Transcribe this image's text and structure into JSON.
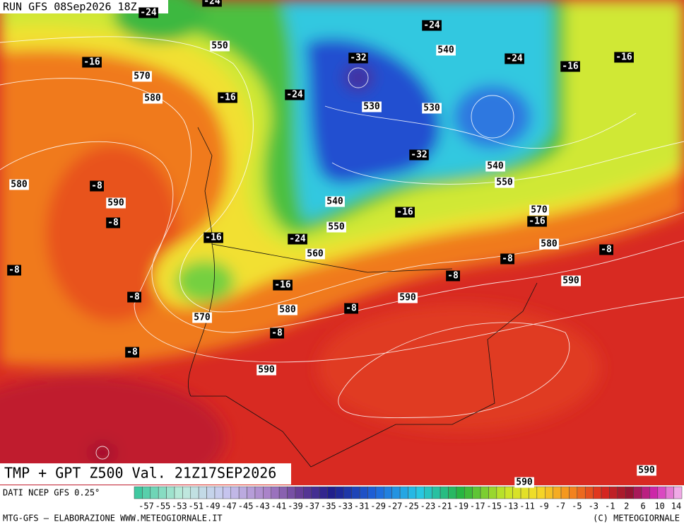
{
  "header": {
    "run": "RUN GFS 08Sep2026 18Z",
    "product": "TMP + GPT Z500 Val. 21Z17SEP2026"
  },
  "map_labels": {
    "temperature": [
      -24,
      -24,
      -16,
      -16,
      -24,
      -32,
      -24,
      -24,
      -16,
      -16,
      -32,
      -8,
      -8,
      -16,
      -24,
      -16,
      -16,
      -8,
      -8,
      -16,
      -8,
      -8,
      -8,
      -8,
      -8,
      -8
    ],
    "height": [
      550,
      570,
      580,
      540,
      530,
      530,
      540,
      550,
      580,
      590,
      540,
      550,
      560,
      570,
      580,
      590,
      590,
      580,
      570,
      590,
      590,
      590
    ]
  },
  "scale": {
    "ticks": [
      -57,
      -55,
      -53,
      -51,
      -49,
      -47,
      -45,
      -43,
      -41,
      -39,
      -37,
      -35,
      -33,
      -31,
      -29,
      -27,
      -25,
      -23,
      -21,
      -19,
      -17,
      -15,
      -13,
      -11,
      -9,
      -7,
      -5,
      -3,
      -1,
      2,
      6,
      10,
      14
    ]
  },
  "footer": {
    "source": "DATI NCEP GFS 0.25°",
    "credit": "MTG-GFS — ELABORAZIONE WWW.METEOGIORNALE.IT",
    "copyright": "(C) METEOGIORNALE"
  }
}
